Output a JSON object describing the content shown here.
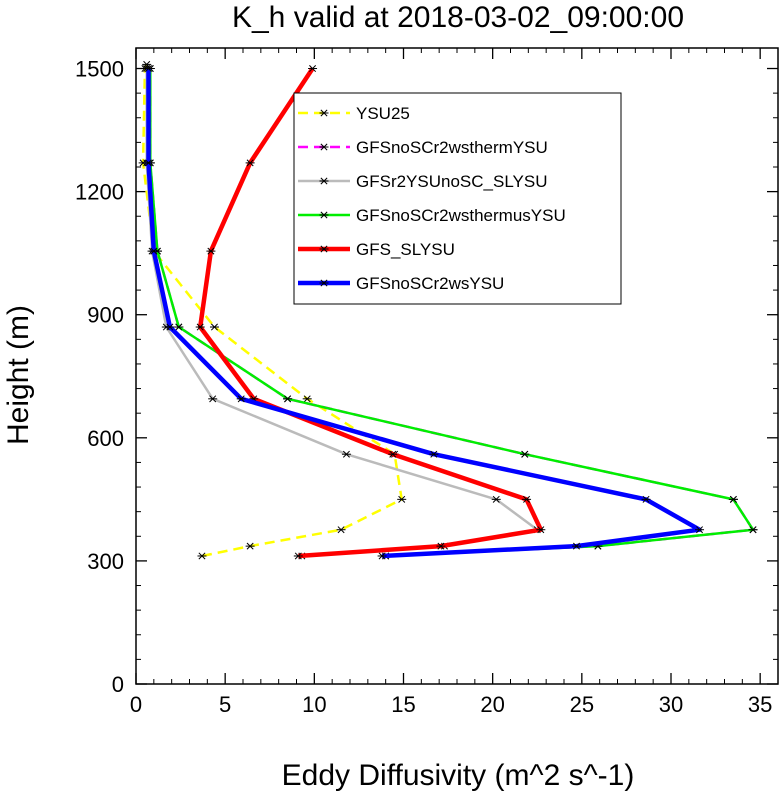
{
  "chart_data": {
    "type": "line",
    "title": "K_h valid at 2018-03-02_09:00:00",
    "xlabel": "Eddy Diffusivity (m^2 s^-1)",
    "ylabel": "Height (m)",
    "xlim": [
      0,
      36
    ],
    "ylim": [
      0,
      1550
    ],
    "xticks": [
      0,
      5,
      10,
      15,
      20,
      25,
      30,
      35
    ],
    "yticks": [
      0,
      300,
      600,
      900,
      1200,
      1500
    ],
    "grid": false,
    "legend_position": "top-center",
    "series": [
      {
        "name": "YSU25",
        "color": "#ffff00",
        "dash": "dashed",
        "x": [
          3.7,
          6.4,
          11.5,
          14.9,
          14.5,
          9.6,
          4.4,
          1.0,
          0.4,
          0.5,
          0.6
        ],
        "y": [
          312,
          336,
          376,
          450,
          560,
          695,
          870,
          1055,
          1270,
          1500,
          1510
        ]
      },
      {
        "name": "GFSnoSCr2wsthermYSU",
        "color": "#ff00ff",
        "dash": "dashed",
        "x": [
          14.0,
          25.9,
          34.6,
          33.5,
          21.8,
          8.5,
          2.4,
          1.2,
          0.8,
          0.8
        ],
        "y": [
          312,
          336,
          376,
          450,
          560,
          695,
          870,
          1055,
          1270,
          1500
        ]
      },
      {
        "name": "GFSr2YSUnoSC_SLYSU",
        "color": "#bbbbbb",
        "dash": "solid",
        "x": [
          9.3,
          17.3,
          22.5,
          20.2,
          11.8,
          4.3,
          1.7,
          0.9,
          0.6,
          0.6
        ],
        "y": [
          312,
          336,
          376,
          450,
          560,
          695,
          870,
          1055,
          1270,
          1500
        ]
      },
      {
        "name": "GFSnoSCr2wsthermusYSU",
        "color": "#00ee00",
        "dash": "solid",
        "x": [
          14.0,
          25.9,
          34.6,
          33.5,
          21.8,
          8.5,
          2.4,
          1.2,
          0.8,
          0.8
        ],
        "y": [
          312,
          336,
          376,
          450,
          560,
          695,
          870,
          1055,
          1270,
          1500
        ]
      },
      {
        "name": "GFS_SLYSU",
        "color": "#ff0000",
        "dash": "solid",
        "x": [
          9.1,
          17.1,
          22.7,
          21.9,
          14.4,
          6.6,
          3.6,
          4.2,
          6.4,
          9.9
        ],
        "y": [
          312,
          336,
          376,
          450,
          560,
          695,
          870,
          1055,
          1270,
          1500
        ]
      },
      {
        "name": "GFSnoSCr2wsYSU",
        "color": "#0000ff",
        "dash": "solid",
        "x": [
          13.8,
          24.7,
          31.6,
          28.6,
          16.7,
          5.9,
          1.9,
          1.0,
          0.7,
          0.7
        ],
        "y": [
          312,
          336,
          376,
          450,
          560,
          695,
          870,
          1055,
          1270,
          1500
        ]
      }
    ]
  }
}
